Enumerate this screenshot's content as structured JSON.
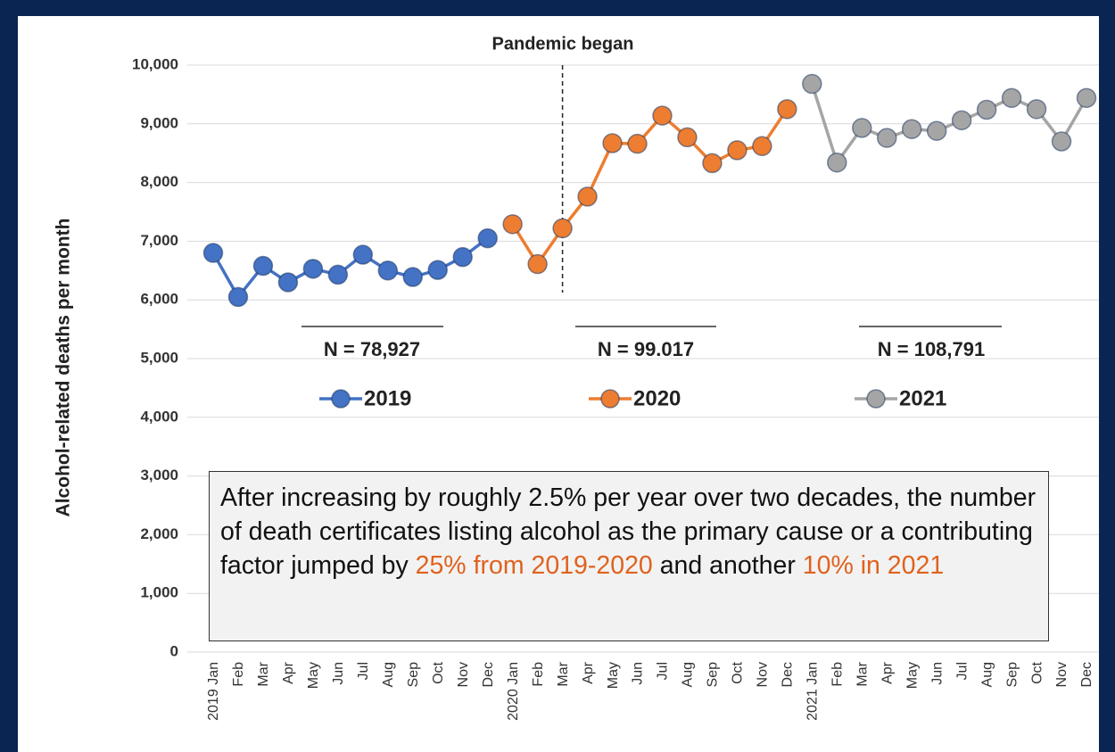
{
  "chart_data": {
    "type": "line",
    "title": "Pandemic began",
    "y_label": "Alcohol-related deaths per month",
    "categories": [
      "2019 Jan",
      "Feb",
      "Mar",
      "Apr",
      "May",
      "Jun",
      "Jul",
      "Aug",
      "Sep",
      "Oct",
      "Nov",
      "Dec",
      "2020 Jan",
      "Feb",
      "Mar",
      "Apr",
      "May",
      "Jun",
      "Jul",
      "Aug",
      "Sep",
      "Oct",
      "Nov",
      "Dec",
      "2021 Jan",
      "Feb",
      "Mar",
      "Apr",
      "May",
      "Jun",
      "Jul",
      "Aug",
      "Sep",
      "Oct",
      "Nov",
      "Dec"
    ],
    "series": [
      {
        "name": "2019",
        "color": "#4472c4",
        "values": [
          6800,
          6050,
          6580,
          6300,
          6530,
          6430,
          6770,
          6500,
          6390,
          6510,
          6730,
          7050,
          null,
          null,
          null,
          null,
          null,
          null,
          null,
          null,
          null,
          null,
          null,
          null,
          null,
          null,
          null,
          null,
          null,
          null,
          null,
          null,
          null,
          null,
          null,
          null
        ]
      },
      {
        "name": "2020",
        "color": "#ed7d31",
        "values": [
          null,
          null,
          null,
          null,
          null,
          null,
          null,
          null,
          null,
          null,
          null,
          null,
          7290,
          6610,
          7220,
          7760,
          8670,
          8660,
          9140,
          8770,
          8330,
          8550,
          8620,
          9250,
          null,
          null,
          null,
          null,
          null,
          null,
          null,
          null,
          null,
          null,
          null,
          null
        ]
      },
      {
        "name": "2021",
        "color": "#a5a5a5",
        "values": [
          null,
          null,
          null,
          null,
          null,
          null,
          null,
          null,
          null,
          null,
          null,
          null,
          null,
          null,
          null,
          null,
          null,
          null,
          null,
          null,
          null,
          null,
          null,
          null,
          9680,
          8340,
          8930,
          8760,
          8910,
          8880,
          9060,
          9240,
          9440,
          9250,
          8700,
          9440
        ]
      }
    ],
    "ylim": [
      0,
      10000
    ],
    "yticks": [
      0,
      {
        "value": 1000,
        "label": "1,000"
      },
      {
        "value": 2000,
        "label": "2,000"
      },
      {
        "value": 3000,
        "label": "3,000"
      },
      {
        "value": 4000,
        "label": "4,000"
      },
      {
        "value": 5000,
        "label": "5,000"
      },
      {
        "value": 6000,
        "label": "6,000"
      },
      {
        "value": 7000,
        "label": "7,000"
      },
      {
        "value": 8000,
        "label": "8,000"
      },
      {
        "value": 9000,
        "label": "9,000"
      },
      {
        "value": 10000,
        "label": "10,000"
      }
    ],
    "grid": true,
    "pandemic_category": 14,
    "totals": [
      "N = 78,927",
      "N = 99.017",
      "N = 108,791"
    ],
    "note": [
      "After increasing by roughly 2.5% per year over two decades, the number of death certificates listing alcohol as the primary cause or a contributing factor jumped by ",
      "25% from 2019-2020",
      " and another ",
      "10% in 2021"
    ],
    "highlight_color": "#e0621e"
  }
}
